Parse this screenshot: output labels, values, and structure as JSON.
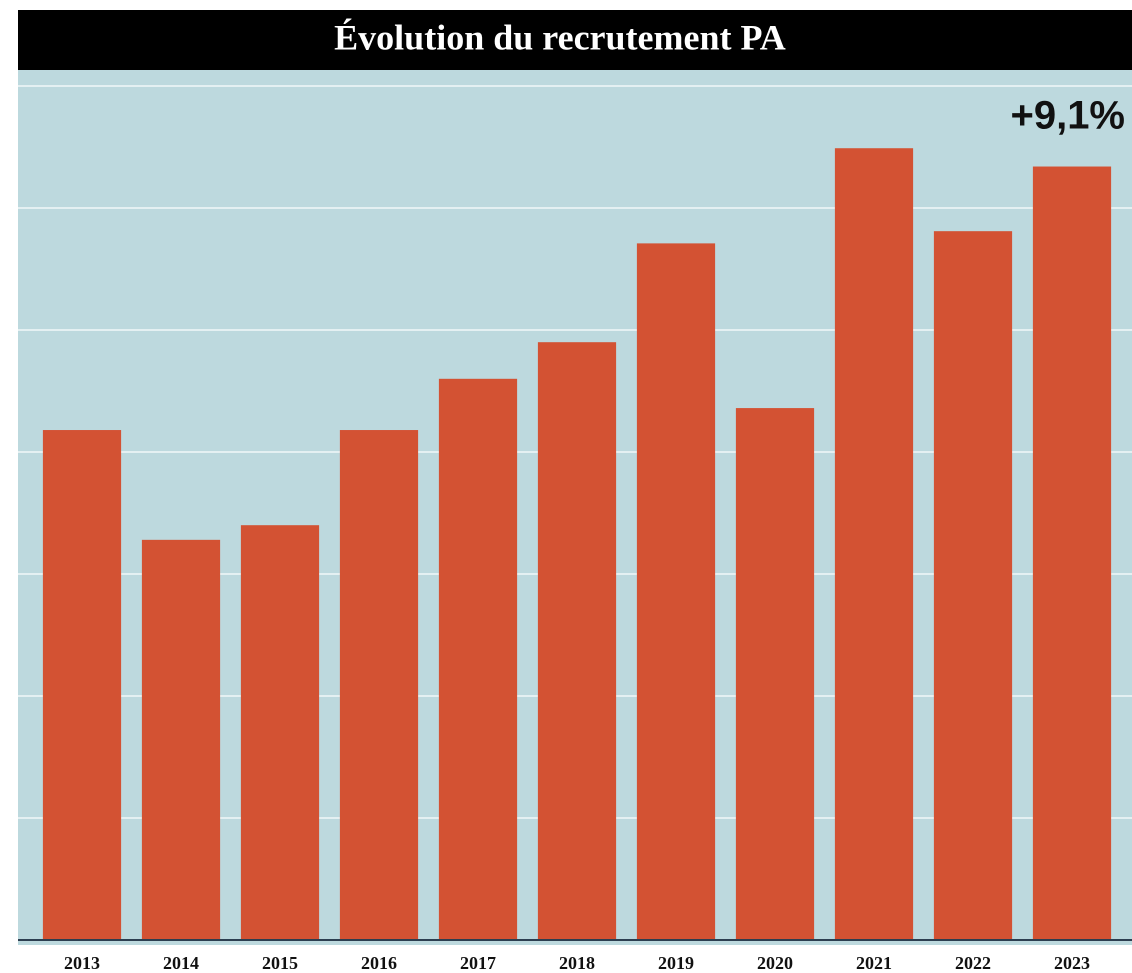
{
  "chart_data": {
    "type": "bar",
    "title": "Évolution du recrutement PA",
    "categories": [
      "2013",
      "2014",
      "2015",
      "2016",
      "2017",
      "2018",
      "2019",
      "2020",
      "2021",
      "2022",
      "2023"
    ],
    "values": [
      4.18,
      3.28,
      3.4,
      4.18,
      4.6,
      4.9,
      5.71,
      4.36,
      6.49,
      5.81,
      6.34
    ],
    "color": "#d35233",
    "ylim": [
      0,
      7
    ],
    "yticks": [
      0,
      1,
      2,
      3,
      4,
      5,
      6,
      7
    ],
    "grid": true,
    "show_ytick_labels": false,
    "annotation": "+9,1%"
  }
}
